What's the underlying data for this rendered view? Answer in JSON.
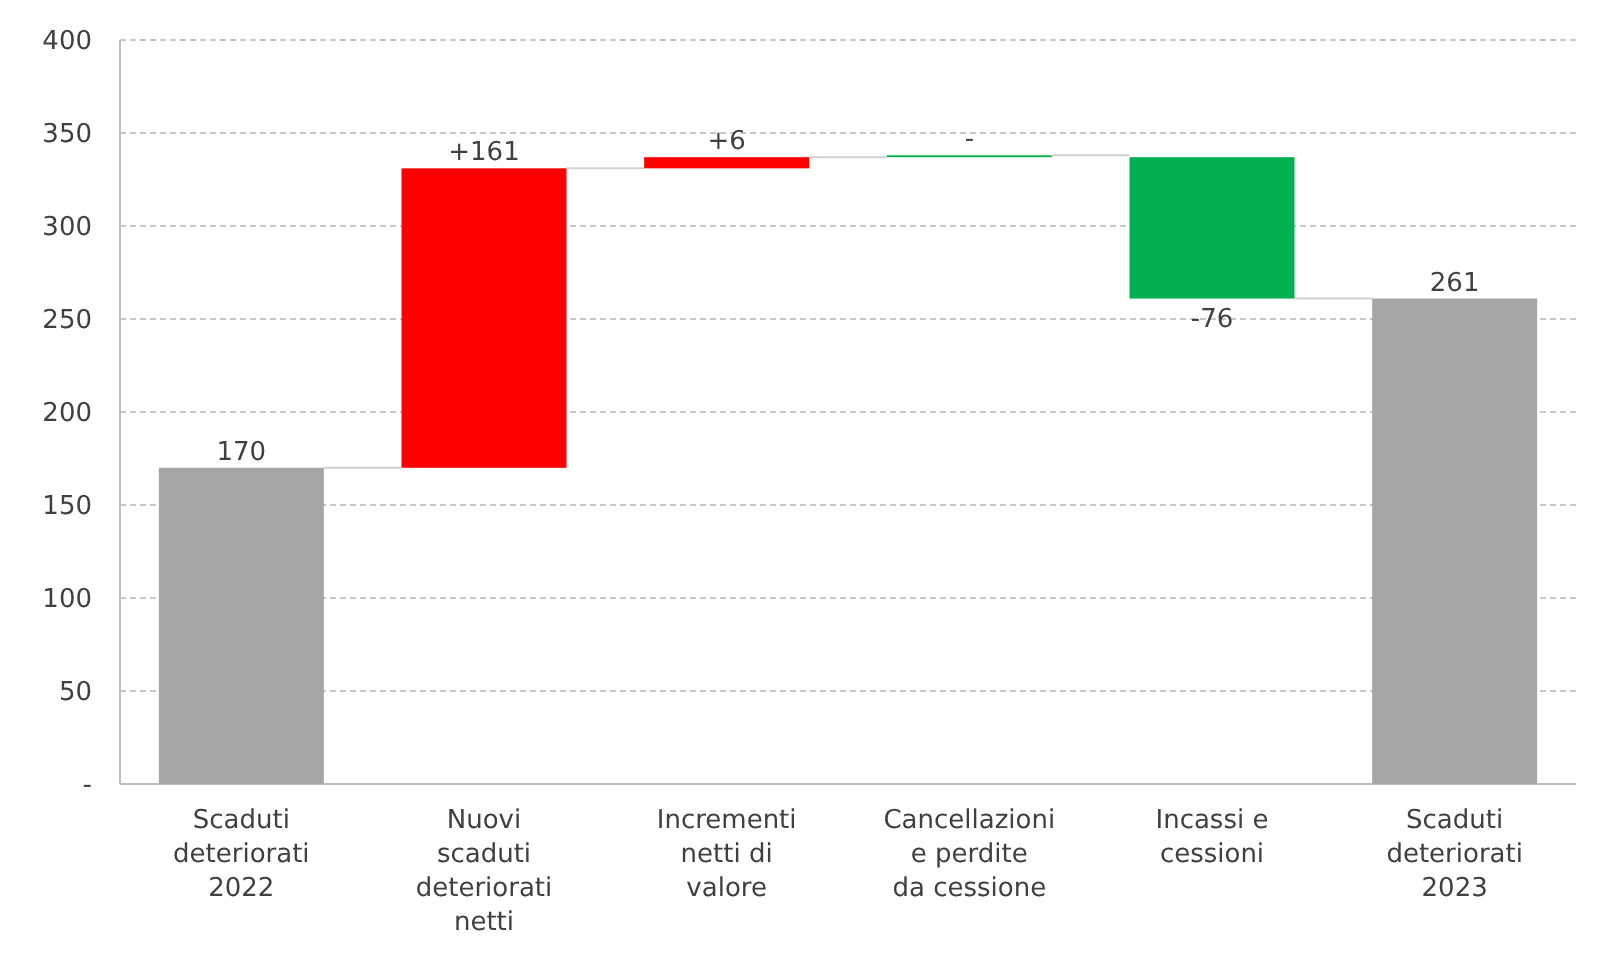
{
  "chart_data": {
    "type": "bar",
    "categories": [
      "Scaduti deteriorati 2022",
      "Nuovi scaduti deteriorati netti",
      "Incrementi netti di valore",
      "Cancellazioni e perdite da cessione",
      "Incassi e cessioni",
      "Scaduti deteriorati 2023"
    ],
    "values": [
      170,
      161,
      6,
      1,
      -76,
      261
    ],
    "base": [
      0,
      170,
      331,
      337,
      337,
      0
    ],
    "colors": [
      "#a5a5a5",
      "#ff0000",
      "#ff0000",
      "#00b050",
      "#00b050",
      "#a5a5a5"
    ],
    "value_labels": [
      "170",
      "+161",
      "+6",
      "-",
      "-76",
      "261"
    ],
    "ylim": [
      0,
      400
    ],
    "yticks": [
      {
        "value": 0,
        "label": "-"
      },
      50,
      100,
      150,
      200,
      250,
      300,
      350,
      400
    ],
    "grid": "y"
  }
}
